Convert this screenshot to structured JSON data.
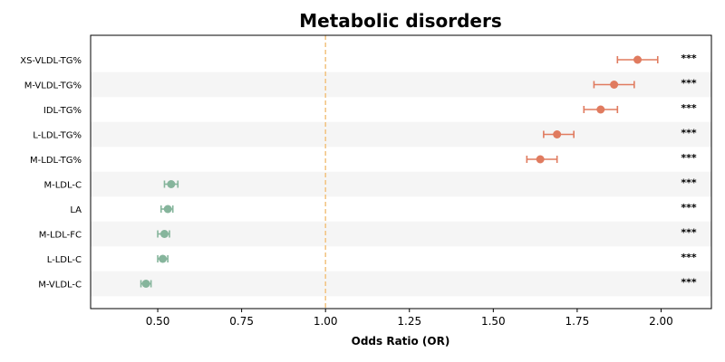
{
  "chart_data": {
    "type": "forest",
    "title": "Metabolic disorders",
    "xlabel": "Odds Ratio (OR)",
    "xlim": [
      0.3,
      2.15
    ],
    "xticks": [
      "0.50",
      "0.75",
      "1.00",
      "1.25",
      "1.50",
      "1.75",
      "2.00"
    ],
    "reference_line": 1.0,
    "reference_color": "#f2c27f",
    "band_color": "#f5f5f5",
    "colors": {
      "risk": "#e07b5f",
      "protective": "#86b59c"
    },
    "rows": [
      {
        "label": "XS-VLDL-TG%",
        "or": 1.93,
        "ci_low": 1.87,
        "ci_high": 1.99,
        "significance": "***"
      },
      {
        "label": "M-VLDL-TG%",
        "or": 1.86,
        "ci_low": 1.8,
        "ci_high": 1.92,
        "significance": "***"
      },
      {
        "label": "IDL-TG%",
        "or": 1.82,
        "ci_low": 1.77,
        "ci_high": 1.87,
        "significance": "***"
      },
      {
        "label": "L-LDL-TG%",
        "or": 1.69,
        "ci_low": 1.65,
        "ci_high": 1.74,
        "significance": "***"
      },
      {
        "label": "M-LDL-TG%",
        "or": 1.64,
        "ci_low": 1.6,
        "ci_high": 1.69,
        "significance": "***"
      },
      {
        "label": "M-LDL-C",
        "or": 0.54,
        "ci_low": 0.52,
        "ci_high": 0.56,
        "significance": "***"
      },
      {
        "label": "LA",
        "or": 0.53,
        "ci_low": 0.51,
        "ci_high": 0.545,
        "significance": "***"
      },
      {
        "label": "M-LDL-FC",
        "or": 0.52,
        "ci_low": 0.5,
        "ci_high": 0.535,
        "significance": "***"
      },
      {
        "label": "L-LDL-C",
        "or": 0.515,
        "ci_low": 0.5,
        "ci_high": 0.53,
        "significance": "***"
      },
      {
        "label": "M-VLDL-C",
        "or": 0.465,
        "ci_low": 0.45,
        "ci_high": 0.48,
        "significance": "***"
      }
    ]
  }
}
